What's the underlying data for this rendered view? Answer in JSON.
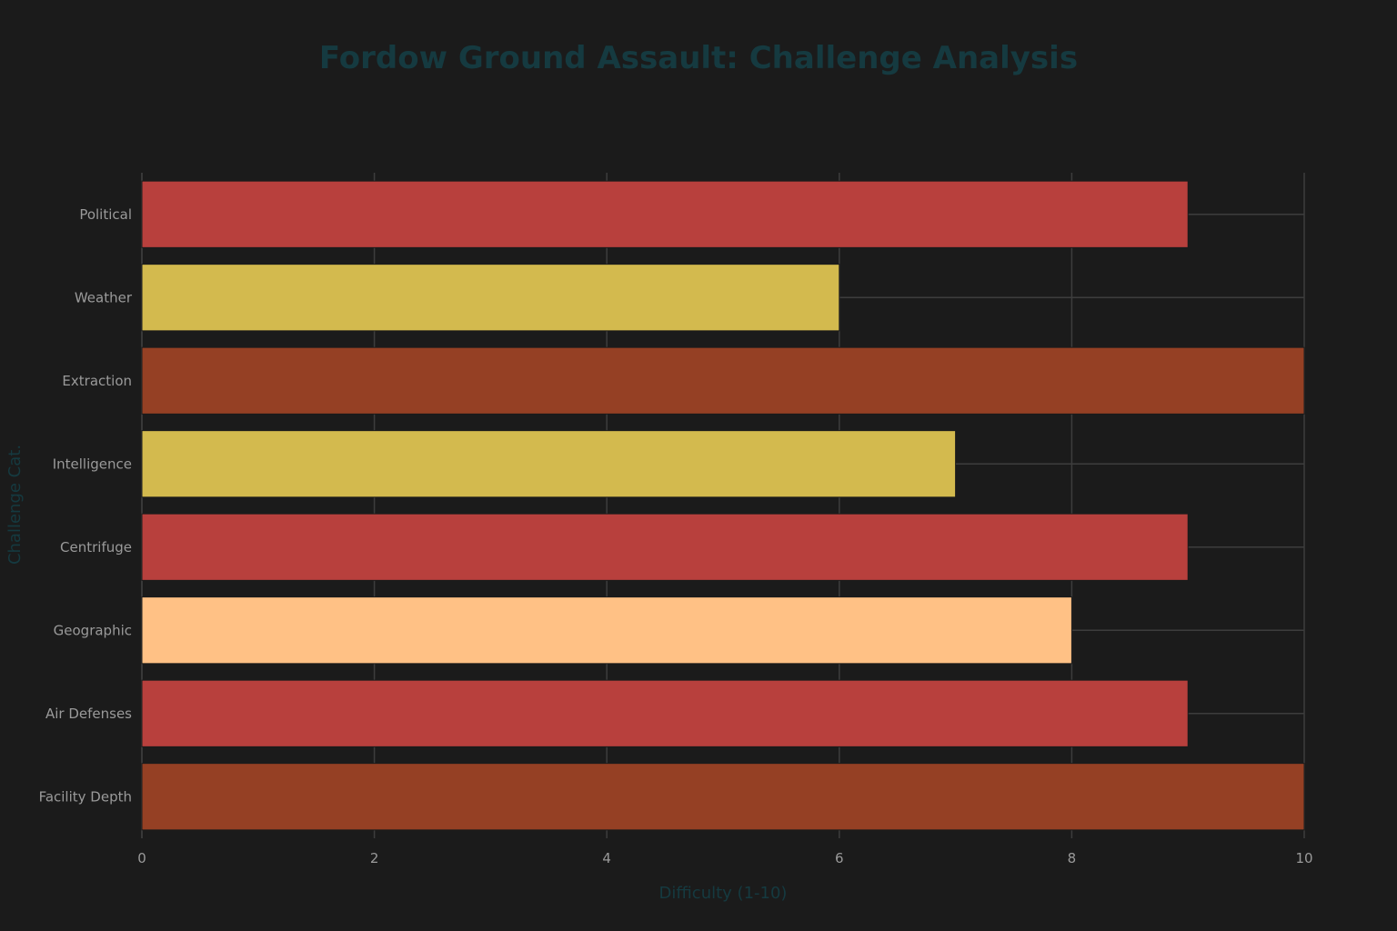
{
  "chart_data": {
    "type": "bar",
    "orientation": "horizontal",
    "title": "Fordow Ground Assault: Challenge Analysis",
    "xlabel": "Difficulty (1-10)",
    "ylabel": "Challenge Cat.",
    "xlim": [
      0,
      10
    ],
    "x_ticks": [
      0,
      2,
      4,
      6,
      8,
      10
    ],
    "grid": true,
    "categories": [
      "Facility Depth",
      "Air Defenses",
      "Geographic",
      "Centrifuge",
      "Intelligence",
      "Extraction",
      "Weather",
      "Political"
    ],
    "values": [
      10,
      9,
      8,
      9,
      7,
      10,
      6,
      9
    ],
    "colors": [
      "#954024",
      "#b8403d",
      "#ffc185",
      "#b8403d",
      "#d3ba4e",
      "#954024",
      "#d3ba4e",
      "#b8403d"
    ],
    "background": "#1b1b1b",
    "title_color": "#153a40"
  }
}
